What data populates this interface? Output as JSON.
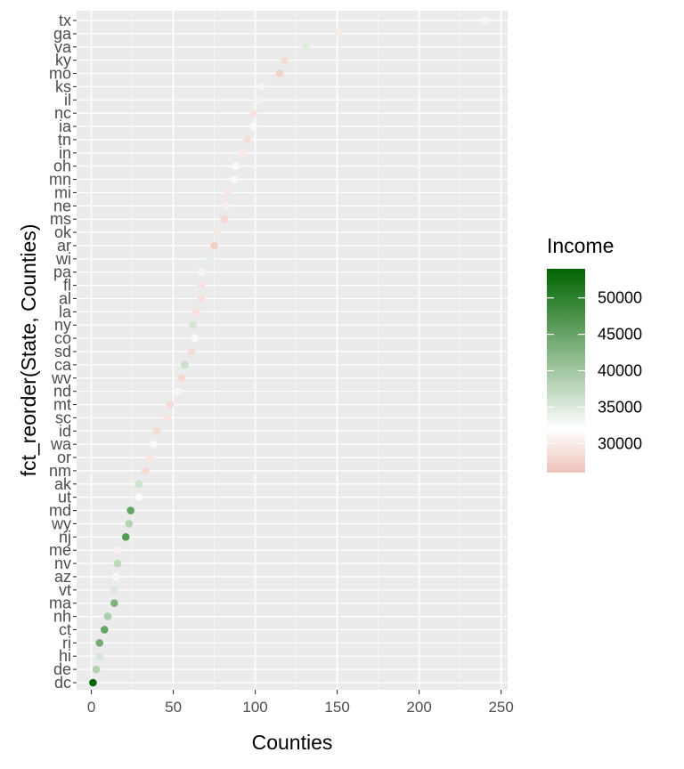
{
  "chart_data": {
    "type": "scatter",
    "xlabel": "Counties",
    "ylabel": "fct_reorder(State, Counties)",
    "xlim": [
      -9,
      254
    ],
    "x_ticks": [
      0,
      50,
      100,
      150,
      200,
      250
    ],
    "grid": true,
    "legend": {
      "title": "Income",
      "position": "right",
      "ticks": [
        30000,
        35000,
        40000,
        45000,
        50000
      ],
      "range": [
        26000,
        54000
      ],
      "low_color": "#eec4bb",
      "mid_color": "#ffffff",
      "mid_value": 32000,
      "high_color": "#006400"
    },
    "points": [
      {
        "state": "tx",
        "counties": 240,
        "income": 31000
      },
      {
        "state": "ga",
        "counties": 151,
        "income": 30000
      },
      {
        "state": "va",
        "counties": 131,
        "income": 34500
      },
      {
        "state": "ky",
        "counties": 118,
        "income": 28500
      },
      {
        "state": "mo",
        "counties": 115,
        "income": 27500
      },
      {
        "state": "ks",
        "counties": 104,
        "income": 33000
      },
      {
        "state": "il",
        "counties": 102,
        "income": 33500
      },
      {
        "state": "nc",
        "counties": 99,
        "income": 29000
      },
      {
        "state": "ia",
        "counties": 99,
        "income": 32500
      },
      {
        "state": "tn",
        "counties": 95,
        "income": 28500
      },
      {
        "state": "in",
        "counties": 92,
        "income": 30000
      },
      {
        "state": "oh",
        "counties": 88,
        "income": 32500
      },
      {
        "state": "mn",
        "counties": 87,
        "income": 32800
      },
      {
        "state": "mi",
        "counties": 83,
        "income": 29500
      },
      {
        "state": "ne",
        "counties": 82,
        "income": 30500
      },
      {
        "state": "ms",
        "counties": 81,
        "income": 28000
      },
      {
        "state": "ok",
        "counties": 77,
        "income": 29800
      },
      {
        "state": "ar",
        "counties": 75,
        "income": 27000
      },
      {
        "state": "wi",
        "counties": 72,
        "income": 34000
      },
      {
        "state": "pa",
        "counties": 67,
        "income": 33000
      },
      {
        "state": "fl",
        "counties": 67,
        "income": 29300
      },
      {
        "state": "al",
        "counties": 67,
        "income": 28800
      },
      {
        "state": "la",
        "counties": 64,
        "income": 29000
      },
      {
        "state": "ny",
        "counties": 62,
        "income": 35500
      },
      {
        "state": "co",
        "counties": 63,
        "income": 32600
      },
      {
        "state": "sd",
        "counties": 61,
        "income": 28500
      },
      {
        "state": "ca",
        "counties": 57,
        "income": 36500
      },
      {
        "state": "wv",
        "counties": 55,
        "income": 28000
      },
      {
        "state": "nd",
        "counties": 53,
        "income": 32900
      },
      {
        "state": "mt",
        "counties": 48,
        "income": 28300
      },
      {
        "state": "sc",
        "counties": 46,
        "income": 29200
      },
      {
        "state": "id",
        "counties": 40,
        "income": 28500
      },
      {
        "state": "wa",
        "counties": 38,
        "income": 32700
      },
      {
        "state": "or",
        "counties": 36,
        "income": 29500
      },
      {
        "state": "nm",
        "counties": 33,
        "income": 28200
      },
      {
        "state": "ak",
        "counties": 29,
        "income": 36000
      },
      {
        "state": "ut",
        "counties": 29,
        "income": 32400
      },
      {
        "state": "md",
        "counties": 24,
        "income": 45000
      },
      {
        "state": "wy",
        "counties": 23,
        "income": 38500
      },
      {
        "state": "nj",
        "counties": 21,
        "income": 46500
      },
      {
        "state": "me",
        "counties": 16,
        "income": 30500
      },
      {
        "state": "nv",
        "counties": 16,
        "income": 37500
      },
      {
        "state": "az",
        "counties": 15,
        "income": 31200
      },
      {
        "state": "vt",
        "counties": 14,
        "income": 35000
      },
      {
        "state": "ma",
        "counties": 14,
        "income": 43000
      },
      {
        "state": "nh",
        "counties": 10,
        "income": 39000
      },
      {
        "state": "ct",
        "counties": 8,
        "income": 45000
      },
      {
        "state": "ri",
        "counties": 5,
        "income": 44000
      },
      {
        "state": "hi",
        "counties": 5,
        "income": 35500
      },
      {
        "state": "de",
        "counties": 3,
        "income": 38500
      },
      {
        "state": "dc",
        "counties": 1,
        "income": 54000
      }
    ]
  }
}
